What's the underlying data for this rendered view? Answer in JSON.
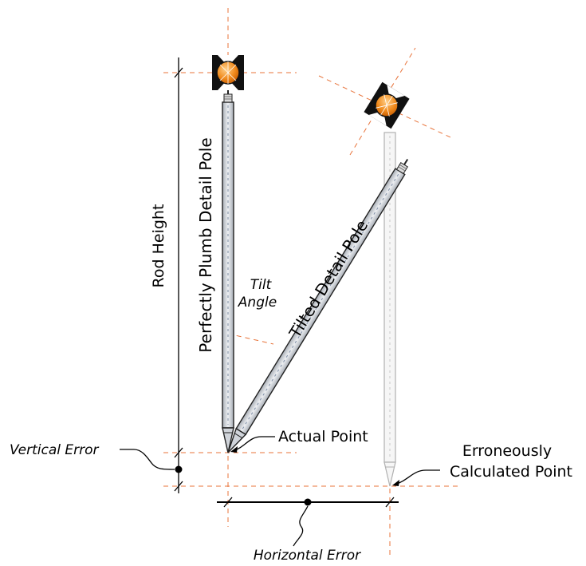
{
  "labels": {
    "rod_height": "Rod Height",
    "plumb_pole": "Perfectly Plumb Detail Pole",
    "tilted_pole": "Tilted Detail Pole",
    "tilt_angle_line1": "Tilt",
    "tilt_angle_line2": "Angle",
    "actual_point": "Actual Point",
    "calculated_point_line1": "Erroneously",
    "calculated_point_line2": "Calculated Point",
    "vertical_error": "Vertical Error",
    "horizontal_error": "Horizontal Error"
  },
  "colors": {
    "guide_lines": "#e8733a",
    "prism_orange": "#f08a1c",
    "pole_fill": "#d9dde3",
    "ghost_pole": "#b0b0b0"
  }
}
